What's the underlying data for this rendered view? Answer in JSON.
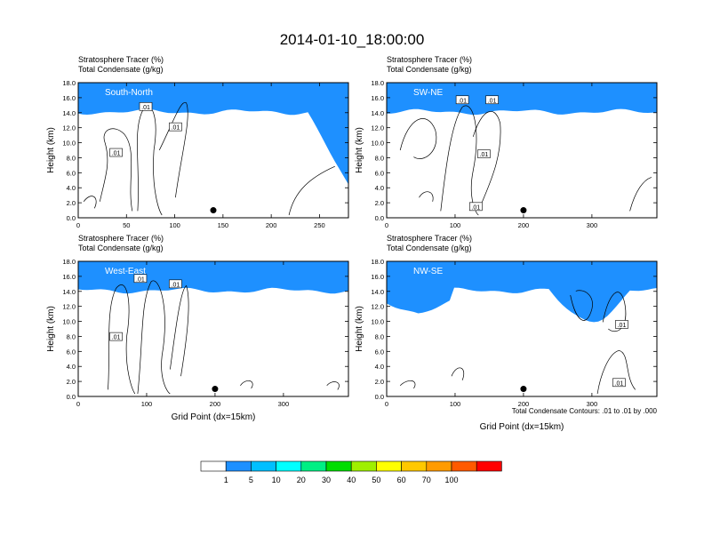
{
  "figure": {
    "title": "2014-01-10_18:00:00",
    "contour_note": "Total Condensate Contours: .01 to .01 by .000"
  },
  "colorbar": {
    "colors": [
      "#ffffff",
      "#1e90ff",
      "#00bfff",
      "#00ffff",
      "#00ef84",
      "#00dd00",
      "#9fef00",
      "#ffff00",
      "#ffc800",
      "#ff9b00",
      "#ff5a00",
      "#ff0000"
    ],
    "labels": [
      "1",
      "5",
      "10",
      "20",
      "30",
      "40",
      "50",
      "60",
      "70",
      "100"
    ]
  },
  "chart_data": [
    {
      "type": "contour",
      "left_title": "Stratosphere Tracer   (%)",
      "left_subtitle": "Total Condensate   (g/kg)",
      "label": "South-North",
      "ylabel": "Height (km)",
      "xlabel": "",
      "ylim": [
        0,
        18
      ],
      "yticks": [
        "0.0",
        "2.0",
        "4.0",
        "6.0",
        "8.0",
        "10.0",
        "12.0",
        "14.0",
        "16.0",
        "18.0"
      ],
      "xlim": [
        0,
        280
      ],
      "xticks": [
        0,
        50,
        100,
        150,
        200,
        250
      ],
      "contour_labels": [
        ".01",
        ".01",
        ".01"
      ],
      "marker_x": 140
    },
    {
      "type": "contour",
      "left_title": "Stratosphere Tracer   (%)",
      "left_subtitle": "Total Condensate   (g/kg)",
      "label": "SW-NE",
      "ylabel": "Height (km)",
      "xlabel": "",
      "ylim": [
        0,
        18
      ],
      "yticks": [
        "0.0",
        "2.0",
        "4.0",
        "6.0",
        "8.0",
        "10.0",
        "12.0",
        "14.0",
        "16.0",
        "18.0"
      ],
      "xlim": [
        0,
        395
      ],
      "xticks": [
        0,
        100,
        200,
        300
      ],
      "contour_labels": [
        ".01",
        ".01",
        ".01",
        ".01"
      ],
      "marker_x": 200
    },
    {
      "type": "contour",
      "left_title": "Stratosphere Tracer   (%)",
      "left_subtitle": "Total Condensate   (g/kg)",
      "label": "West-East",
      "ylabel": "Height (km)",
      "xlabel": "Grid Point (dx=15km)",
      "ylim": [
        0,
        18
      ],
      "yticks": [
        "0.0",
        "2.0",
        "4.0",
        "6.0",
        "8.0",
        "10.0",
        "12.0",
        "14.0",
        "16.0",
        "18.0"
      ],
      "xlim": [
        0,
        395
      ],
      "xticks": [
        0,
        100,
        200,
        300
      ],
      "contour_labels": [
        ".01",
        ".01",
        ".01"
      ],
      "marker_x": 200
    },
    {
      "type": "contour",
      "left_title": "Stratosphere Tracer   (%)",
      "left_subtitle": "Total Condensate   (g/kg)",
      "label": "NW-SE",
      "ylabel": "Height (km)",
      "xlabel": "Grid Point (dx=15km)",
      "ylim": [
        0,
        18
      ],
      "yticks": [
        "0.0",
        "2.0",
        "4.0",
        "6.0",
        "8.0",
        "10.0",
        "12.0",
        "14.0",
        "16.0",
        "18.0"
      ],
      "xlim": [
        0,
        395
      ],
      "xticks": [
        0,
        100,
        200,
        300
      ],
      "contour_labels": [
        ".01",
        ".01"
      ],
      "marker_x": 200
    }
  ]
}
